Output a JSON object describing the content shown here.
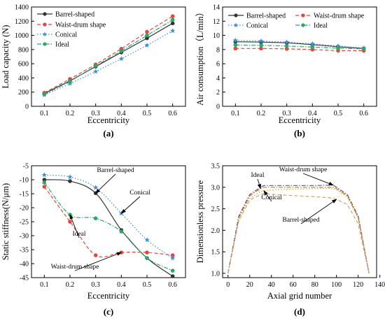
{
  "chart_data": [
    {
      "panel_label": "(a)",
      "type": "line",
      "xlabel": "Eccentricity",
      "ylabel": "Load capacity (N)",
      "xlim": [
        0.05,
        0.65
      ],
      "ylim": [
        0,
        1400
      ],
      "x_ticks": [
        0.1,
        0.2,
        0.3,
        0.4,
        0.5,
        0.6
      ],
      "x_tick_labels": [
        "0.1",
        "0.2",
        "0.3",
        "0.4",
        "0.5",
        "0.6"
      ],
      "y_ticks": [
        0,
        200,
        400,
        600,
        800,
        1000,
        1200,
        1400
      ],
      "y_tick_labels": [
        "0",
        "200",
        "400",
        "600",
        "800",
        "1000",
        "1200",
        "1400"
      ],
      "legend_position": "top-left",
      "x": [
        0.1,
        0.2,
        0.3,
        0.4,
        0.5,
        0.6
      ],
      "series": [
        {
          "name": "Barrel-shaped",
          "values": [
            180,
            360,
            560,
            760,
            960,
            1170
          ],
          "color": "#333333",
          "dash": "solid",
          "marker": "circle"
        },
        {
          "name": "Waist-drum shape",
          "values": [
            190,
            385,
            590,
            810,
            1050,
            1270
          ],
          "color": "#e8453c",
          "dash": "dashed",
          "marker": "circle"
        },
        {
          "name": "Conical",
          "values": [
            160,
            320,
            490,
            670,
            860,
            1065
          ],
          "color": "#3a8ee8",
          "dash": "dotted",
          "marker": "star"
        },
        {
          "name": "Ideal",
          "values": [
            170,
            350,
            570,
            780,
            1000,
            1220
          ],
          "color": "#2aa86a",
          "dash": "dashdot",
          "marker": "circle"
        }
      ]
    },
    {
      "panel_label": "(b)",
      "type": "line",
      "xlabel": "Eccentricity",
      "ylabel": "Air consumption（L/min）",
      "xlim": [
        0.05,
        0.65
      ],
      "ylim": [
        0,
        14
      ],
      "x_ticks": [
        0.1,
        0.2,
        0.3,
        0.4,
        0.5,
        0.6
      ],
      "x_tick_labels": [
        "0.1",
        "0.2",
        "0.3",
        "0.4",
        "0.5",
        "0.6"
      ],
      "y_ticks": [
        0,
        2,
        4,
        6,
        8,
        10,
        12,
        14
      ],
      "y_tick_labels": [
        "0",
        "2",
        "4",
        "6",
        "8",
        "10",
        "12",
        "14"
      ],
      "legend_position": "top",
      "x": [
        0.1,
        0.2,
        0.3,
        0.4,
        0.5,
        0.6
      ],
      "series": [
        {
          "name": "Barrel-shaped",
          "values": [
            9.1,
            9.05,
            8.95,
            8.7,
            8.4,
            8.15
          ],
          "color": "#333333",
          "dash": "solid",
          "marker": "circle"
        },
        {
          "name": "Waist-drum shape",
          "values": [
            8.15,
            8.15,
            8.1,
            8.0,
            7.85,
            7.85
          ],
          "color": "#e8453c",
          "dash": "dashed",
          "marker": "circle"
        },
        {
          "name": "Conical",
          "values": [
            9.3,
            9.2,
            9.05,
            8.8,
            8.5,
            8.2
          ],
          "color": "#3a8ee8",
          "dash": "dotted",
          "marker": "star"
        },
        {
          "name": "Ideal",
          "values": [
            8.65,
            8.6,
            8.5,
            8.35,
            8.2,
            8.1
          ],
          "color": "#2aa86a",
          "dash": "dashdot",
          "marker": "circle"
        }
      ]
    },
    {
      "panel_label": "(c)",
      "type": "line",
      "xlabel": "Eccentricity",
      "ylabel": "Static stiffness(N/μm)",
      "xlim": [
        0.05,
        0.65
      ],
      "ylim": [
        -45,
        -5
      ],
      "x_ticks": [
        0.1,
        0.2,
        0.3,
        0.4,
        0.5,
        0.6
      ],
      "x_tick_labels": [
        "0.1",
        "0.2",
        "0.3",
        "0.4",
        "0.5",
        "0.6"
      ],
      "y_ticks": [
        -45,
        -40,
        -35,
        -30,
        -25,
        -20,
        -15,
        -10,
        -5
      ],
      "y_tick_labels": [
        "-45",
        "-40",
        "-35",
        "-30",
        "-25",
        "-20",
        "-15",
        "-10",
        "-5"
      ],
      "x": [
        0.1,
        0.2,
        0.3,
        0.4,
        0.5,
        0.6
      ],
      "series": [
        {
          "name": "Barrel-shaped",
          "values": [
            -10,
            -10.5,
            -14.8,
            -28,
            -38,
            -44.5
          ],
          "color": "#333333",
          "dash": "solid",
          "marker": "circle"
        },
        {
          "name": "Waist-drum shape",
          "values": [
            -12.5,
            -25,
            -37,
            -36,
            -36,
            -37
          ],
          "color": "#e8453c",
          "dash": "dashed",
          "marker": "circle"
        },
        {
          "name": "Conical",
          "values": [
            -8.3,
            -9,
            -12.8,
            -22,
            -31.5,
            -38
          ],
          "color": "#3a8ee8",
          "dash": "dotted",
          "marker": "star"
        },
        {
          "name": "Ideal",
          "values": [
            -11,
            -22.5,
            -23.8,
            -28.5,
            -38,
            -42.5
          ],
          "color": "#2aa86a",
          "dash": "dashdot",
          "marker": "circle"
        }
      ],
      "annotations": [
        {
          "text": "Barrel-shaped",
          "series": "Barrel-shaped"
        },
        {
          "text": "Conical",
          "series": "Conical"
        },
        {
          "text": "Ideal",
          "series": "Ideal"
        },
        {
          "text": "Waist-drum shape",
          "series": "Waist-drum shape"
        }
      ]
    },
    {
      "panel_label": "(d)",
      "type": "line",
      "xlabel": "Axial grid number",
      "ylabel": "Dimensionless pressure",
      "xlim": [
        -5,
        137
      ],
      "ylim": [
        0.9,
        3.5
      ],
      "x_ticks": [
        0,
        20,
        40,
        60,
        80,
        100,
        120,
        140
      ],
      "x_tick_labels": [
        "0",
        "20",
        "40",
        "60",
        "80",
        "100",
        "120",
        "140"
      ],
      "y_ticks": [
        1.0,
        1.5,
        2.0,
        2.5,
        3.0,
        3.5
      ],
      "y_tick_labels": [
        "1.0",
        "1.5",
        "2.0",
        "2.5",
        "3.0",
        "3.5"
      ],
      "x": [
        0,
        10,
        20,
        30,
        33,
        50,
        65,
        80,
        97,
        100,
        110,
        120,
        130
      ],
      "series": [
        {
          "name": "Ideal",
          "values": [
            1.0,
            2.3,
            2.8,
            2.97,
            3.0,
            3.0,
            3.0,
            3.0,
            3.0,
            2.97,
            2.8,
            2.3,
            1.0
          ],
          "color": "#b8860b",
          "dash": "dashdot",
          "marker": "none"
        },
        {
          "name": "Waist-drum shape",
          "values": [
            1.0,
            2.33,
            2.83,
            3.0,
            3.04,
            3.04,
            3.04,
            3.04,
            3.05,
            3.0,
            2.83,
            2.33,
            1.0
          ],
          "color": "#6f4b8b",
          "dash": "dashdot",
          "marker": "none"
        },
        {
          "name": "Conical",
          "values": [
            1.0,
            2.25,
            2.74,
            2.9,
            2.92,
            2.95,
            2.96,
            2.97,
            2.98,
            2.94,
            2.78,
            2.28,
            1.0
          ],
          "color": "#e0a030",
          "dash": "dotted",
          "marker": "none"
        },
        {
          "name": "Barrel-shaped",
          "values": [
            1.0,
            2.23,
            2.7,
            2.83,
            2.85,
            2.82,
            2.8,
            2.78,
            2.75,
            2.72,
            2.6,
            2.15,
            1.0
          ],
          "color": "#c8a86a",
          "dash": "dashed",
          "marker": "none"
        }
      ],
      "annotations": [
        {
          "text": "Ideal",
          "series": "Ideal"
        },
        {
          "text": "Waist-drum shape",
          "series": "Waist-drum shape"
        },
        {
          "text": "Conical",
          "series": "Conical"
        },
        {
          "text": "Barrel-shaped",
          "series": "Barrel-shaped"
        }
      ]
    }
  ]
}
